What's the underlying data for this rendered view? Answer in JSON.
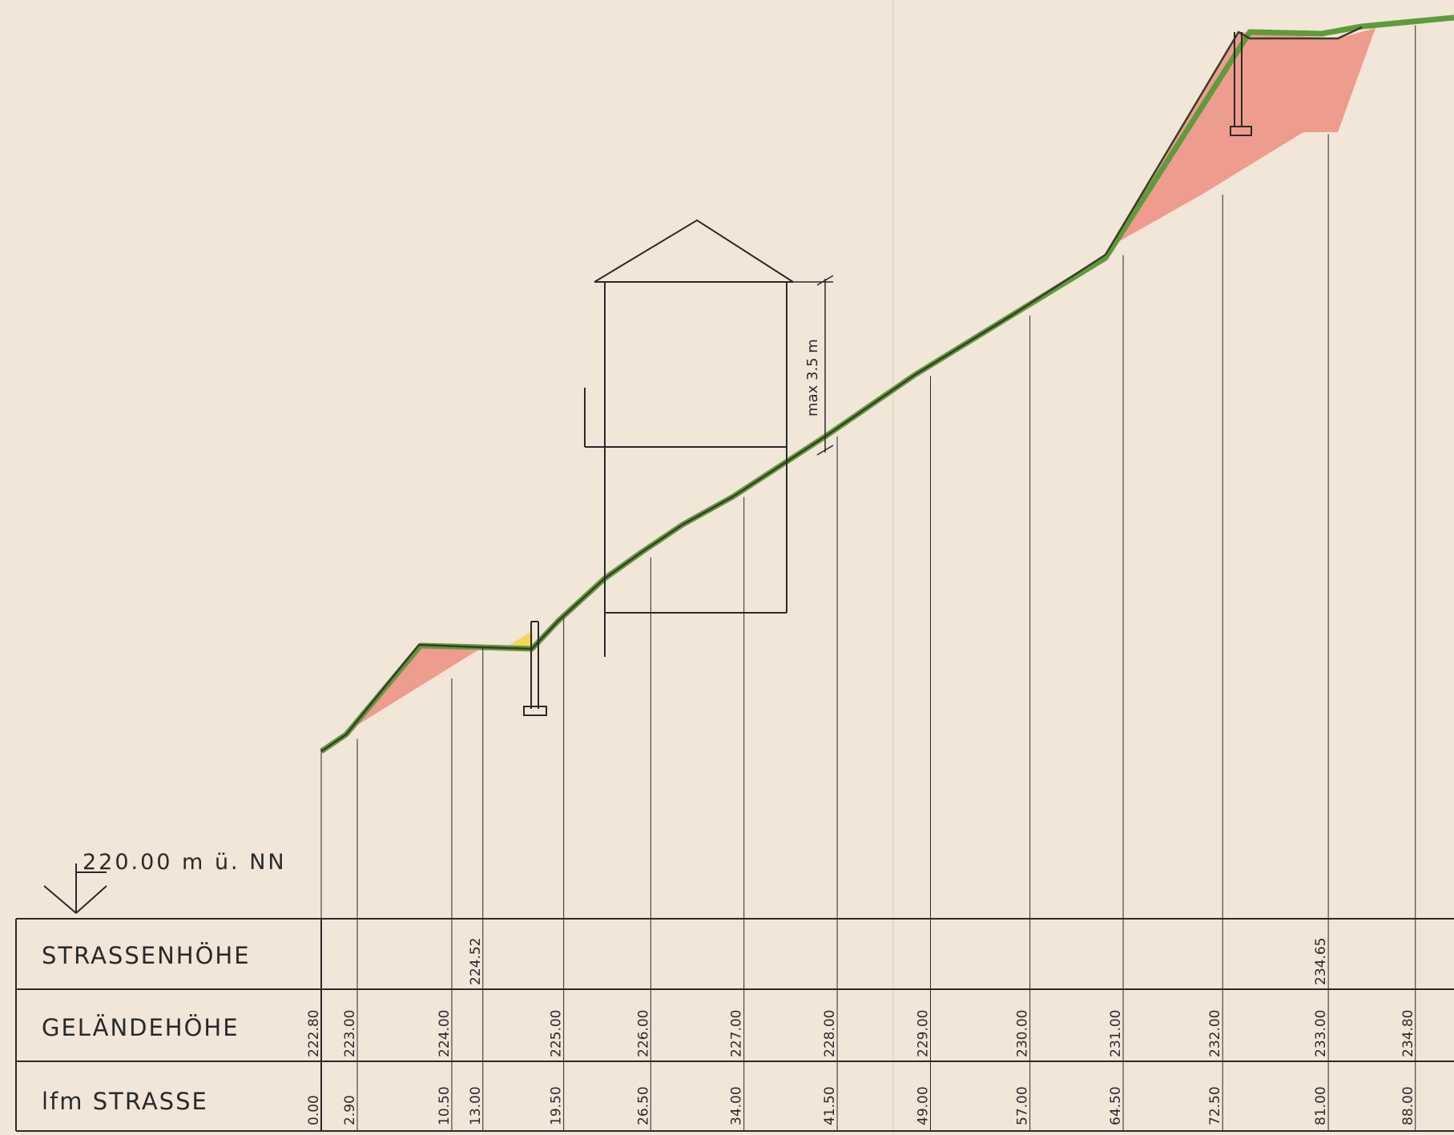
{
  "datum_label": "220.00 m ü. NN",
  "house_height_note": "max 3.5 m",
  "table": {
    "row_labels": [
      "STRASSENHÖHE",
      "GELÄNDEHÖHE",
      "lfm STRASSE"
    ]
  },
  "colors": {
    "paper": "#f1e6d8",
    "ink": "#2a2a2a",
    "road": "#5f9a3c",
    "cut_fill": "#ee9c8e",
    "fill_yellow": "#f3d55a"
  },
  "stations": [
    {
      "lfm": "0.00",
      "gelaende": "222.80",
      "strasse": ""
    },
    {
      "lfm": "2.90",
      "gelaende": "223.00",
      "strasse": ""
    },
    {
      "lfm": "10.50",
      "gelaende": "224.00",
      "strasse": ""
    },
    {
      "lfm": "13.00",
      "gelaende": "",
      "strasse": "224.52"
    },
    {
      "lfm": "19.50",
      "gelaende": "225.00",
      "strasse": ""
    },
    {
      "lfm": "26.50",
      "gelaende": "226.00",
      "strasse": ""
    },
    {
      "lfm": "34.00",
      "gelaende": "227.00",
      "strasse": ""
    },
    {
      "lfm": "41.50",
      "gelaende": "228.00",
      "strasse": ""
    },
    {
      "lfm": "49.00",
      "gelaende": "229.00",
      "strasse": ""
    },
    {
      "lfm": "57.00",
      "gelaende": "230.00",
      "strasse": ""
    },
    {
      "lfm": "64.50",
      "gelaende": "231.00",
      "strasse": ""
    },
    {
      "lfm": "72.50",
      "gelaende": "232.00",
      "strasse": ""
    },
    {
      "lfm": "81.00",
      "gelaende": "233.00",
      "strasse": "234.65"
    },
    {
      "lfm": "88.00",
      "gelaende": "234.80",
      "strasse": ""
    }
  ]
}
